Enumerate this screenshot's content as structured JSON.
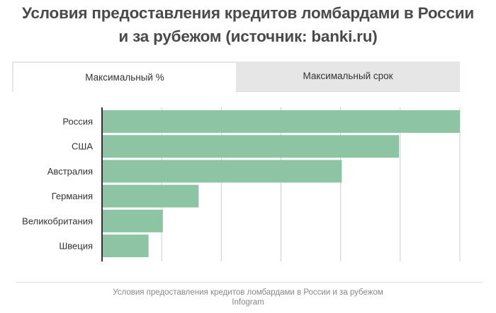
{
  "title": {
    "line1": "Условия предоставления кредитов ломбардами в России",
    "line2": "и за рубежом (источник: banki.ru)"
  },
  "tabs": [
    {
      "label": "Максимальный %",
      "active": true
    },
    {
      "label": "Максимальный срок",
      "active": false
    }
  ],
  "colors": {
    "bar": "#8dc4a4",
    "grid": "#cccccc",
    "axis": "#333333"
  },
  "chart_data": {
    "type": "bar",
    "orientation": "horizontal",
    "categories": [
      "Россия",
      "США",
      "Австралия",
      "Германия",
      "Великобритания",
      "Швеция"
    ],
    "values": [
      100,
      83,
      67,
      27,
      17,
      13
    ],
    "xlim": [
      0,
      100
    ],
    "grid": true
  },
  "footer": {
    "caption": "Условия предоставления кредитов ломбардами в России и за рубежом",
    "credit": "Infogram"
  }
}
